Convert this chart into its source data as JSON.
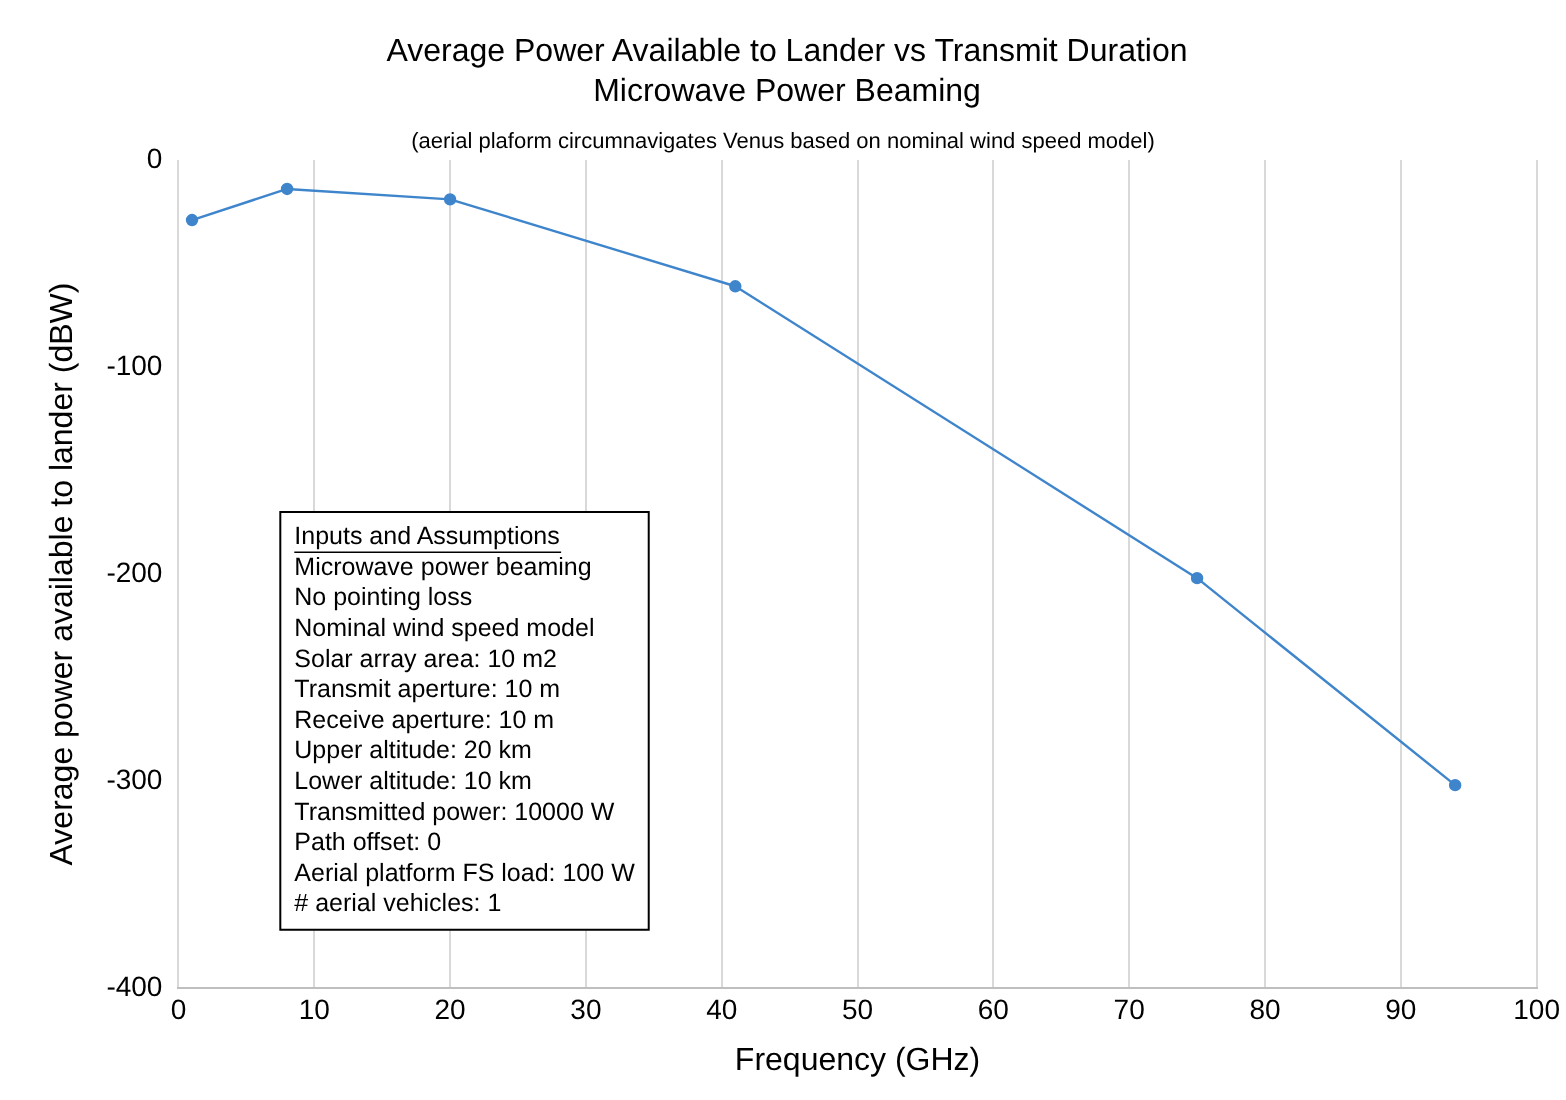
{
  "chart_data": {
    "type": "line",
    "title": "Average Power Available to Lander vs Transmit Duration",
    "subtitle": "Microwave Power Beaming",
    "xlabel": "Frequency (GHz)",
    "ylabel": "Average power available to lander (dBW)",
    "annotations": [
      "(aerial plaform circumnavigates Venus based on nominal wind speed model)",
      "Inputs and Assumptions",
      "Microwave power beaming",
      "No pointing loss",
      "Nominal wind speed model",
      "Solar array area: 10 m2",
      "Transmit aperture: 10 m",
      "Receive aperture: 10 m",
      "Upper altitude: 20 km",
      "Lower altitude: 10 km",
      "Transmitted power: 10000 W",
      "Path offset: 0",
      "Aerial platform FS load: 100 W",
      "# aerial vehicles: 1"
    ],
    "x": [
      1,
      8,
      20,
      41,
      75,
      94
    ],
    "series": [
      {
        "color": "#3f85cc",
        "values": [
          -29,
          -14,
          -19,
          -61,
          -202,
          -302
        ]
      }
    ],
    "xlim": [
      0,
      100
    ],
    "xticks": [
      0,
      10,
      20,
      30,
      40,
      50,
      60,
      70,
      80,
      90,
      100
    ],
    "ylim": [
      -400,
      0
    ],
    "yticks": [
      -400,
      -300,
      -200,
      -100,
      0
    ],
    "grid": "x",
    "legend": false,
    "marker": "circle",
    "line_style": "solid"
  }
}
